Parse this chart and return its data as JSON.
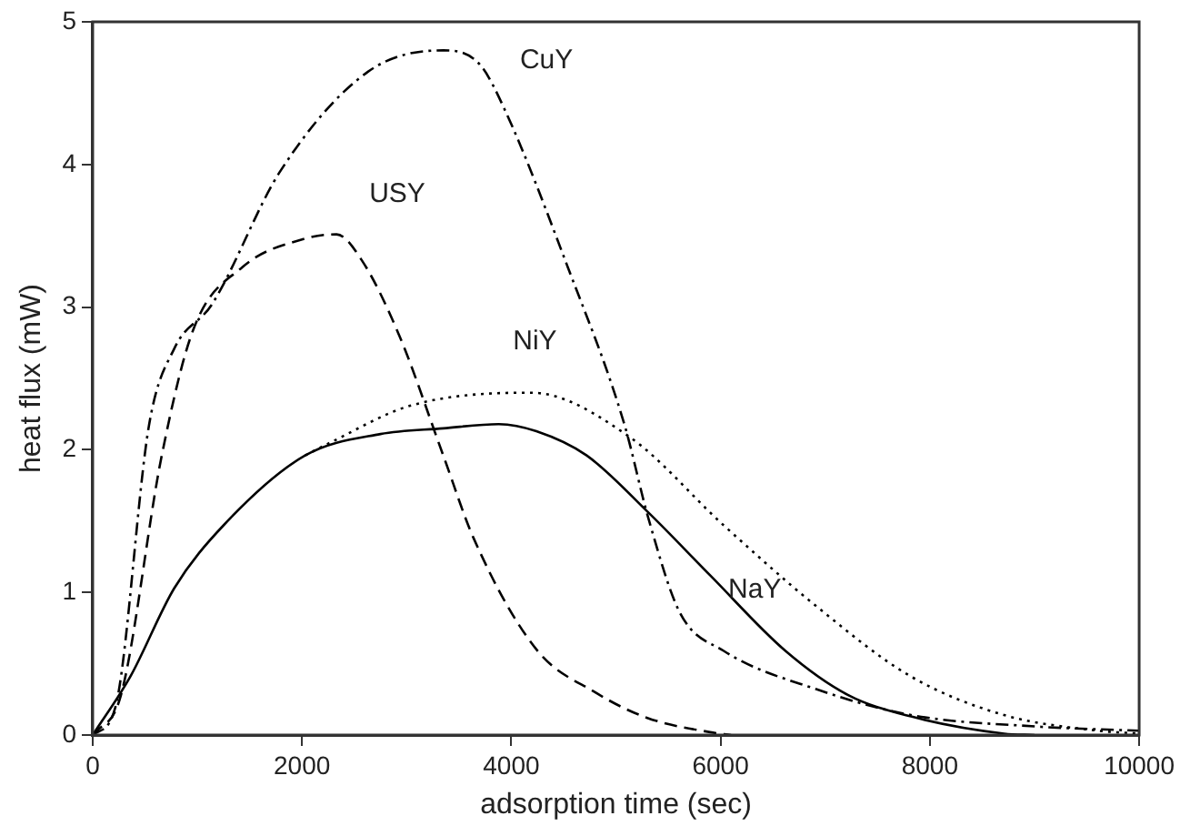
{
  "chart_data": {
    "type": "line",
    "xlabel": "adsorption time (sec)",
    "ylabel": "heat flux (mW)",
    "xlim": [
      0,
      10000
    ],
    "ylim": [
      0,
      5
    ],
    "xticks": [
      0,
      2000,
      4000,
      6000,
      8000,
      10000
    ],
    "yticks": [
      0,
      1,
      2,
      3,
      4,
      5
    ],
    "grid": false,
    "legend": false,
    "marker": "none",
    "series": [
      {
        "name": "CuY",
        "color": "#000000",
        "line_style": "dashdot",
        "x": [
          0,
          215,
          540,
          780,
          1140,
          1790,
          2630,
          3350,
          3700,
          3940,
          4540,
          5080,
          5310,
          5610,
          6030,
          6920,
          7820,
          9010,
          10000
        ],
        "values": [
          0,
          0.19,
          2.18,
          2.71,
          3.02,
          3.95,
          4.65,
          4.8,
          4.7,
          4.38,
          3.28,
          2.18,
          1.52,
          0.86,
          0.59,
          0.32,
          0.14,
          0.06,
          0.03
        ]
      },
      {
        "name": "USY",
        "color": "#000000",
        "line_style": "dashed",
        "x": [
          0,
          270,
          660,
          960,
          1430,
          2030,
          2330,
          2570,
          2930,
          3350,
          3640,
          4240,
          4800,
          5300,
          5900,
          6100
        ],
        "values": [
          0,
          0.28,
          1.96,
          2.84,
          3.28,
          3.48,
          3.51,
          3.33,
          2.8,
          1.96,
          1.38,
          0.6,
          0.3,
          0.12,
          0.02,
          0
        ]
      },
      {
        "name": "NiY",
        "color": "#000000",
        "line_style": "dotted",
        "x": [
          2030,
          2270,
          3040,
          4190,
          5130,
          6030,
          6920,
          7820,
          8710,
          9610,
          10000
        ],
        "values": [
          1.96,
          2.05,
          2.31,
          2.4,
          2.09,
          1.47,
          0.9,
          0.41,
          0.14,
          0.03,
          0.01
        ]
      },
      {
        "name": "NaY",
        "color": "#000000",
        "line_style": "solid",
        "x": [
          0,
          360,
          780,
          1250,
          2030,
          2750,
          3350,
          3880,
          4240,
          4720,
          5310,
          5900,
          6620,
          7220,
          7820,
          8710,
          9000
        ],
        "values": [
          0,
          0.41,
          1.03,
          1.47,
          1.96,
          2.11,
          2.15,
          2.18,
          2.13,
          1.96,
          1.56,
          1.12,
          0.59,
          0.28,
          0.13,
          0.01,
          0
        ]
      }
    ]
  }
}
